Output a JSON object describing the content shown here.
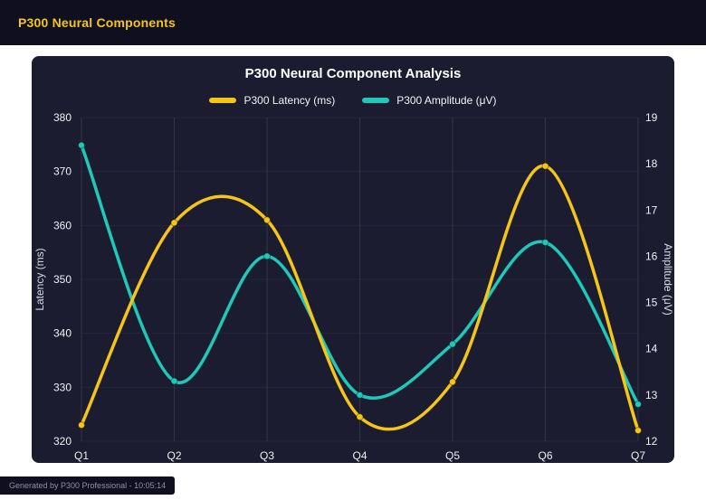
{
  "page": {
    "header_title": "P300 Neural Components",
    "footer_text": "Generated by P300 Professional - 10:05:14"
  },
  "colors": {
    "page_bg": "#ffffff",
    "header_bg": "#0f0f1f",
    "card_bg": "#1c1c31",
    "accent_yellow": "#f5c518",
    "accent_teal": "#1fc8b8",
    "text_light": "#eef0f4"
  },
  "chart_data": {
    "type": "line",
    "title": "P300 Neural Component Analysis",
    "categories": [
      "Q1",
      "Q2",
      "Q3",
      "Q4",
      "Q5",
      "Q6",
      "Q7"
    ],
    "series": [
      {
        "name": "P300 Latency (ms)",
        "axis": "left",
        "color": "#f5c518",
        "values": [
          323,
          360.5,
          361,
          324.5,
          331,
          371,
          322
        ]
      },
      {
        "name": "P300 Amplitude (μV)",
        "axis": "right",
        "color": "#1fc8b8",
        "values": [
          18.4,
          13.3,
          16.0,
          13.0,
          14.1,
          16.3,
          12.8
        ]
      }
    ],
    "left_axis": {
      "label": "Latency (ms)",
      "min": 320,
      "max": 380,
      "ticks": [
        320,
        330,
        340,
        350,
        360,
        370,
        380
      ]
    },
    "right_axis": {
      "label": "Amplitude (μV)",
      "min": 12,
      "max": 19,
      "ticks": [
        12,
        13,
        14,
        15,
        16,
        17,
        18,
        19
      ]
    },
    "grid": "vertical",
    "legend_position": "top",
    "line_style": "smooth"
  }
}
